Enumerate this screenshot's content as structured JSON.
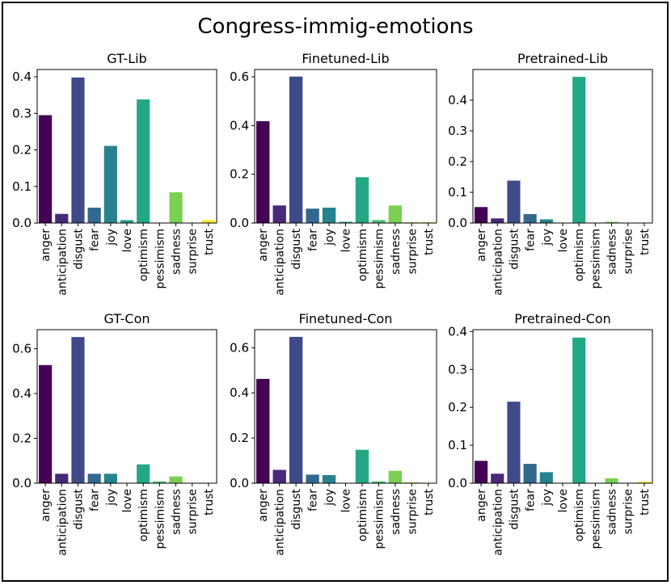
{
  "figure_title": "Congress-immig-emotions",
  "colors": {
    "anger": "#440154",
    "anticipation": "#482878",
    "disgust": "#3e4a89",
    "fear": "#31688e",
    "joy": "#26828e",
    "love": "#1f9e89",
    "optimism": "#22a884",
    "pessimism": "#44bf70",
    "sadness": "#7ad151",
    "surprise": "#bddf26",
    "trust": "#fde725"
  },
  "chart_data": [
    {
      "type": "bar",
      "title": "GT-Lib",
      "categories": [
        "anger",
        "anticipation",
        "disgust",
        "fear",
        "joy",
        "love",
        "optimism",
        "pessimism",
        "sadness",
        "surprise",
        "trust"
      ],
      "values": [
        0.295,
        0.025,
        0.398,
        0.042,
        0.211,
        0.008,
        0.338,
        0.0,
        0.084,
        0.0,
        0.008
      ],
      "ylim": [
        0,
        0.42
      ],
      "yticks": [
        0.0,
        0.1,
        0.2,
        0.3,
        0.4
      ],
      "ytick_labels": [
        "0.0",
        "0.1",
        "0.2",
        "0.3",
        "0.4"
      ]
    },
    {
      "type": "bar",
      "title": "Finetuned-Lib",
      "categories": [
        "anger",
        "anticipation",
        "disgust",
        "fear",
        "joy",
        "love",
        "optimism",
        "pessimism",
        "sadness",
        "surprise",
        "trust"
      ],
      "values": [
        0.418,
        0.072,
        0.601,
        0.059,
        0.063,
        0.005,
        0.188,
        0.012,
        0.072,
        0.003,
        0.003
      ],
      "ylim": [
        0,
        0.63
      ],
      "yticks": [
        0.0,
        0.2,
        0.4,
        0.6
      ],
      "ytick_labels": [
        "0.0",
        "0.2",
        "0.4",
        "0.6"
      ]
    },
    {
      "type": "bar",
      "title": "Pretrained-Lib",
      "categories": [
        "anger",
        "anticipation",
        "disgust",
        "fear",
        "joy",
        "love",
        "optimism",
        "pessimism",
        "sadness",
        "surprise",
        "trust"
      ],
      "values": [
        0.052,
        0.015,
        0.138,
        0.029,
        0.012,
        0.0,
        0.476,
        0.0,
        0.004,
        0.0,
        0.0
      ],
      "ylim": [
        0,
        0.5
      ],
      "yticks": [
        0.0,
        0.1,
        0.2,
        0.3,
        0.4
      ],
      "ytick_labels": [
        "0.0",
        "0.1",
        "0.2",
        "0.3",
        "0.4"
      ]
    },
    {
      "type": "bar",
      "title": "GT-Con",
      "categories": [
        "anger",
        "anticipation",
        "disgust",
        "fear",
        "joy",
        "love",
        "optimism",
        "pessimism",
        "sadness",
        "surprise",
        "trust"
      ],
      "values": [
        0.527,
        0.042,
        0.652,
        0.042,
        0.042,
        0.0,
        0.084,
        0.008,
        0.03,
        0.0,
        0.0
      ],
      "ylim": [
        0,
        0.685
      ],
      "yticks": [
        0.0,
        0.2,
        0.4,
        0.6
      ],
      "ytick_labels": [
        "0.0",
        "0.2",
        "0.4",
        "0.6"
      ]
    },
    {
      "type": "bar",
      "title": "Finetuned-Con",
      "categories": [
        "anger",
        "anticipation",
        "disgust",
        "fear",
        "joy",
        "love",
        "optimism",
        "pessimism",
        "sadness",
        "surprise",
        "trust"
      ],
      "values": [
        0.462,
        0.059,
        0.648,
        0.038,
        0.036,
        0.0,
        0.148,
        0.008,
        0.055,
        0.004,
        0.0
      ],
      "ylim": [
        0,
        0.68
      ],
      "yticks": [
        0.0,
        0.2,
        0.4,
        0.6
      ],
      "ytick_labels": [
        "0.0",
        "0.2",
        "0.4",
        "0.6"
      ]
    },
    {
      "type": "bar",
      "title": "Pretrained-Con",
      "categories": [
        "anger",
        "anticipation",
        "disgust",
        "fear",
        "joy",
        "love",
        "optimism",
        "pessimism",
        "sadness",
        "surprise",
        "trust"
      ],
      "values": [
        0.059,
        0.025,
        0.215,
        0.051,
        0.029,
        0.0,
        0.384,
        0.0,
        0.013,
        0.0,
        0.004
      ],
      "ylim": [
        0,
        0.405
      ],
      "yticks": [
        0.0,
        0.1,
        0.2,
        0.3,
        0.4
      ],
      "ytick_labels": [
        "0.0",
        "0.1",
        "0.2",
        "0.3",
        "0.4"
      ]
    }
  ]
}
